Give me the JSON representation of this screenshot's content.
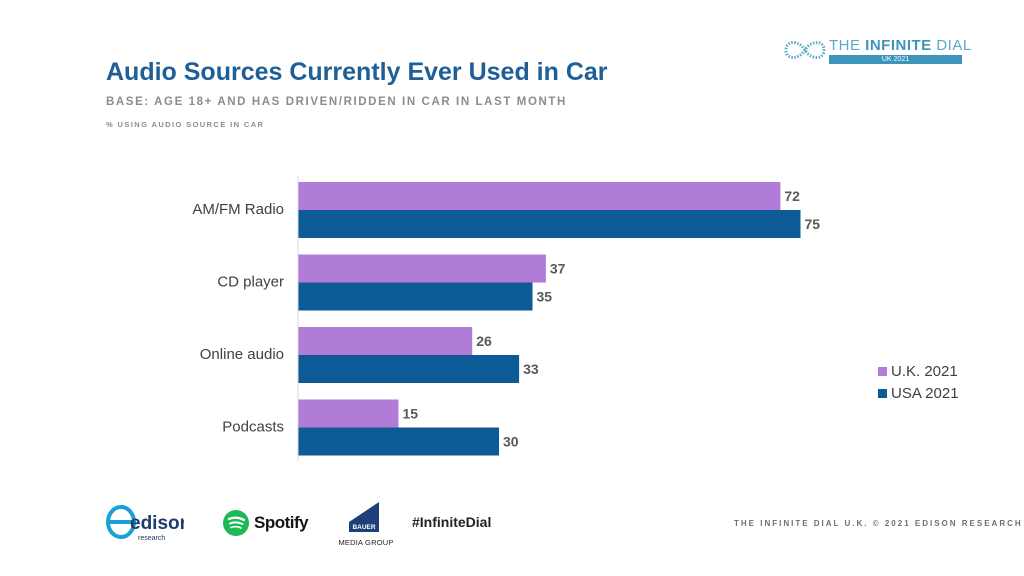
{
  "header": {
    "title": "Audio Sources Currently Ever Used in Car",
    "base": "BASE: AGE 18+ AND HAS DRIVEN/RIDDEN IN CAR IN LAST MONTH",
    "subnote": "% USING AUDIO SOURCE IN CAR"
  },
  "logo": {
    "thin": "THE ",
    "bold": "INFINITE",
    "rest": " DIAL",
    "band": "UK 2021"
  },
  "chart_data": {
    "type": "bar",
    "orientation": "horizontal",
    "categories": [
      "AM/FM Radio",
      "CD player",
      "Online audio",
      "Podcasts"
    ],
    "series": [
      {
        "name": "U.K. 2021",
        "values": [
          72,
          37,
          26,
          15
        ],
        "color": "#b07cd8"
      },
      {
        "name": "USA 2021",
        "values": [
          75,
          35,
          33,
          30
        ],
        "color": "#0c5a96"
      }
    ],
    "xlim": [
      0,
      100
    ],
    "grid": false,
    "legend": "right",
    "data_labels": true
  },
  "footer": {
    "spotify": "Spotify",
    "bauer": "MEDIA GROUP",
    "bauer_box": "BAUER",
    "hashtag": "#InfiniteDial",
    "copyright": "THE INFINITE DIAL U.K. © 2021 EDISON RESEARCH",
    "edison": "edison",
    "edison_sub": "research"
  }
}
